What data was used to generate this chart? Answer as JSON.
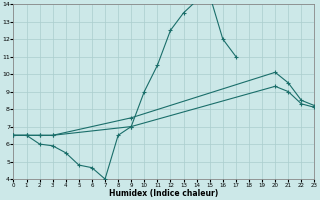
{
  "xlabel": "Humidex (Indice chaleur)",
  "xlim": [
    0,
    23
  ],
  "ylim": [
    4,
    14
  ],
  "xticks": [
    0,
    1,
    2,
    3,
    4,
    5,
    6,
    7,
    8,
    9,
    10,
    11,
    12,
    13,
    14,
    15,
    16,
    17,
    18,
    19,
    20,
    21,
    22,
    23
  ],
  "yticks": [
    4,
    5,
    6,
    7,
    8,
    9,
    10,
    11,
    12,
    13,
    14
  ],
  "background_color": "#cce8e8",
  "grid_color": "#aacece",
  "line_color": "#1a6e6a",
  "line1_x": [
    0,
    1,
    2,
    3,
    4,
    5,
    6,
    7,
    8,
    9,
    10,
    11,
    12,
    13,
    14,
    15,
    16,
    17
  ],
  "line1_y": [
    6.5,
    6.5,
    6.0,
    5.9,
    5.5,
    4.8,
    4.65,
    4.0,
    6.5,
    7.0,
    9.0,
    10.5,
    12.5,
    13.5,
    14.2,
    14.5,
    12.0,
    11.0
  ],
  "line2_x": [
    0,
    1,
    2,
    3,
    9,
    20,
    21,
    22,
    23
  ],
  "line2_y": [
    6.5,
    6.5,
    6.5,
    6.5,
    7.5,
    10.1,
    9.5,
    8.5,
    8.2
  ],
  "line3_x": [
    0,
    1,
    2,
    3,
    9,
    20,
    21,
    22,
    23
  ],
  "line3_y": [
    6.5,
    6.5,
    6.5,
    6.5,
    7.0,
    9.3,
    9.0,
    8.3,
    8.1
  ]
}
